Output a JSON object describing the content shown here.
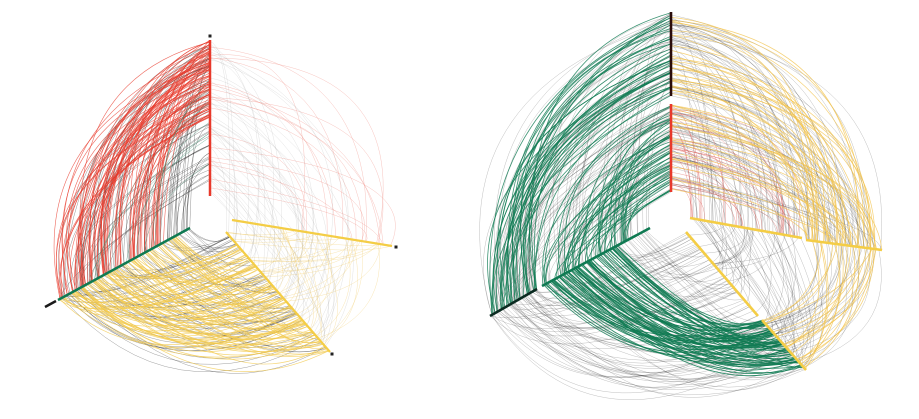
{
  "figure": {
    "panels": [
      {
        "id": "left",
        "name": "hive-plot-sparse",
        "axes": [
          {
            "name": "red-axis",
            "color": "#e8392b"
          },
          {
            "name": "yellow-axis",
            "color": "#f4cd45"
          },
          {
            "name": "green-axis",
            "color": "#0f7a52"
          }
        ],
        "edge_groups": [
          {
            "name": "red-to-green-edges",
            "color": "#e8392b",
            "count": 90
          },
          {
            "name": "red-to-yellow-faint-edges",
            "color": "#f08a7f",
            "count": 18
          },
          {
            "name": "dark-red-to-green-edges",
            "color": "#222222",
            "count": 70
          },
          {
            "name": "green-to-yellow-edges",
            "color": "#f2c84b",
            "count": 110
          },
          {
            "name": "dark-green-to-yellow-edges",
            "color": "#2a2a2a",
            "count": 70
          },
          {
            "name": "yellow-self-edges",
            "color": "#f3d27a",
            "count": 40
          },
          {
            "name": "faint-grey-edges",
            "color": "#9a9a9a",
            "count": 45
          },
          {
            "name": "teal-cross-edges",
            "color": "#2f8a6a",
            "count": 8
          }
        ]
      },
      {
        "id": "right",
        "name": "hive-plot-dense",
        "axes": [
          {
            "name": "red-axis-outer",
            "color": "#c0392b"
          },
          {
            "name": "red-axis-inner",
            "color": "#e8392b"
          },
          {
            "name": "yellow-axis-outer",
            "color": "#f4cd45"
          },
          {
            "name": "yellow-axis-inner",
            "color": "#f4cd45"
          },
          {
            "name": "green-axis-outer",
            "color": "#0f7a52"
          },
          {
            "name": "green-axis-inner",
            "color": "#0f7a52"
          }
        ],
        "edge_groups": [
          {
            "name": "dense-black-edges",
            "color": "#111111",
            "count": 420
          },
          {
            "name": "green-bundle-edges",
            "color": "#0f7a52",
            "count": 160
          },
          {
            "name": "yellow-bundle-edges",
            "color": "#f2c14a",
            "count": 70
          },
          {
            "name": "red-faint-edges",
            "color": "#d9534f",
            "count": 30
          }
        ]
      }
    ]
  }
}
